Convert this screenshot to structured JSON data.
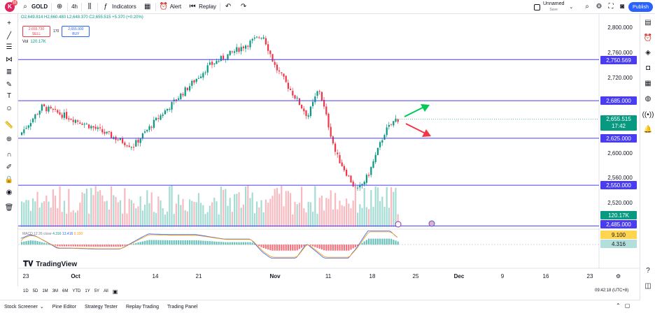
{
  "toolbar": {
    "logo_letter": "K",
    "logo_badge": "11",
    "symbol": "GOLD",
    "interval": "4h",
    "indicators_label": "Indicators",
    "alert_label": "Alert",
    "replay_label": "Replay",
    "layout_name": "Unnamed",
    "layout_sub": "Save",
    "publish_label": "Publish"
  },
  "legend": {
    "ohlc": "O2,649.814 H2,660.480 L2,648.370 C2,655.515 +5.370 (+0.20%)",
    "sell_price": "2,655.730",
    "sell_label": "SELL",
    "spread": "170",
    "buy_price": "2,655.900",
    "buy_label": "BUY",
    "vol_label": "Vol",
    "vol_value": "120.17K"
  },
  "macd": {
    "label": "MACD 12 26 close",
    "v1": "4.316",
    "v2": "13.416",
    "v3": "9.100"
  },
  "brand": "TradingView",
  "colors": {
    "up": "#089981",
    "down": "#f23645",
    "hline": "#4a3cf0",
    "accent": "#2962ff"
  },
  "chart_data": {
    "type": "candlestick",
    "symbol": "GOLD",
    "interval": "4h",
    "price_ticks": [
      "2,800.000",
      "2,760.000",
      "2,720.000",
      "2,600.000",
      "2,560.000",
      "2,520.000"
    ],
    "ylim": [
      2480,
      2820
    ],
    "horizontal_lines": [
      2750.569,
      2685.0,
      2625.0,
      2550.0,
      2485.0
    ],
    "horizontal_line_labels": [
      "2,750.569",
      "2,685.000",
      "2,625.000",
      "2,550.000",
      "2,485.000"
    ],
    "last_price": "2,655.515",
    "countdown": "17:42",
    "volume_label": "120.17K",
    "macd_labels": [
      "9.100",
      "4.316"
    ],
    "x_ticks": [
      "23",
      "Oct",
      "14",
      "21",
      "Nov",
      "11",
      "18",
      "25",
      "Dec",
      "9",
      "16",
      "23"
    ],
    "key_closes": [
      {
        "date": "Sep 23",
        "value": 2630
      },
      {
        "date": "Sep 26",
        "value": 2675
      },
      {
        "date": "Oct 4",
        "value": 2650
      },
      {
        "date": "Oct 10",
        "value": 2612
      },
      {
        "date": "Oct 14",
        "value": 2650
      },
      {
        "date": "Oct 23",
        "value": 2740
      },
      {
        "date": "Oct 31",
        "value": 2790
      },
      {
        "date": "Nov 1",
        "value": 2740
      },
      {
        "date": "Nov 6",
        "value": 2660
      },
      {
        "date": "Nov 7",
        "value": 2705
      },
      {
        "date": "Nov 12",
        "value": 2600
      },
      {
        "date": "Nov 14",
        "value": 2540
      },
      {
        "date": "Nov 16",
        "value": 2565
      },
      {
        "date": "Nov 19",
        "value": 2635
      },
      {
        "date": "Nov 22",
        "value": 2655.515
      }
    ]
  },
  "range_buttons": [
    "1D",
    "5D",
    "1M",
    "3M",
    "6M",
    "YTD",
    "1Y",
    "5Y",
    "All"
  ],
  "clock": "09:42:18 (UTC+8)",
  "bottom_tabs": [
    "Stock Screener",
    "Pine Editor",
    "Strategy Tester",
    "Replay Trading",
    "Trading Panel"
  ]
}
